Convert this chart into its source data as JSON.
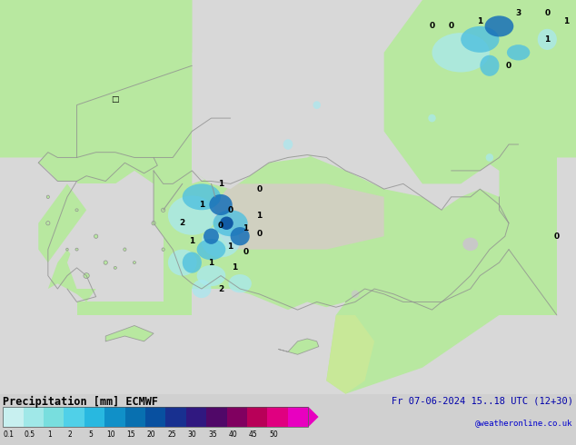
{
  "title_left": "Precipitation [mm] ECMWF",
  "title_right": "Fr 07-06-2024 15..18 UTC (12+30)",
  "subtitle_right": "@weatheronline.co.uk",
  "colorbar_labels": [
    "0.1",
    "0.5",
    "1",
    "2",
    "5",
    "10",
    "15",
    "20",
    "25",
    "30",
    "35",
    "40",
    "45",
    "50"
  ],
  "colorbar_colors": [
    "#c8f0f0",
    "#a0e8e8",
    "#78dede",
    "#50d0e8",
    "#28b8e0",
    "#1090c8",
    "#0870b0",
    "#0850a0",
    "#183090",
    "#301880",
    "#500868",
    "#800060",
    "#b80058",
    "#e00080",
    "#e800c0"
  ],
  "land_color": "#b8e8a0",
  "sea_color": "#d8d8d8",
  "plateau_color": "#d8d8d8",
  "fig_width": 6.34,
  "fig_height": 4.9,
  "dpi": 100,
  "map_extent": [
    18,
    48,
    33,
    48
  ],
  "prec_light": "#a8e8f0",
  "prec_med": "#50c0e0",
  "prec_dark": "#1870b8",
  "prec_vdark": "#0850a0",
  "coast_color": "#909090",
  "border_color": "#909090"
}
